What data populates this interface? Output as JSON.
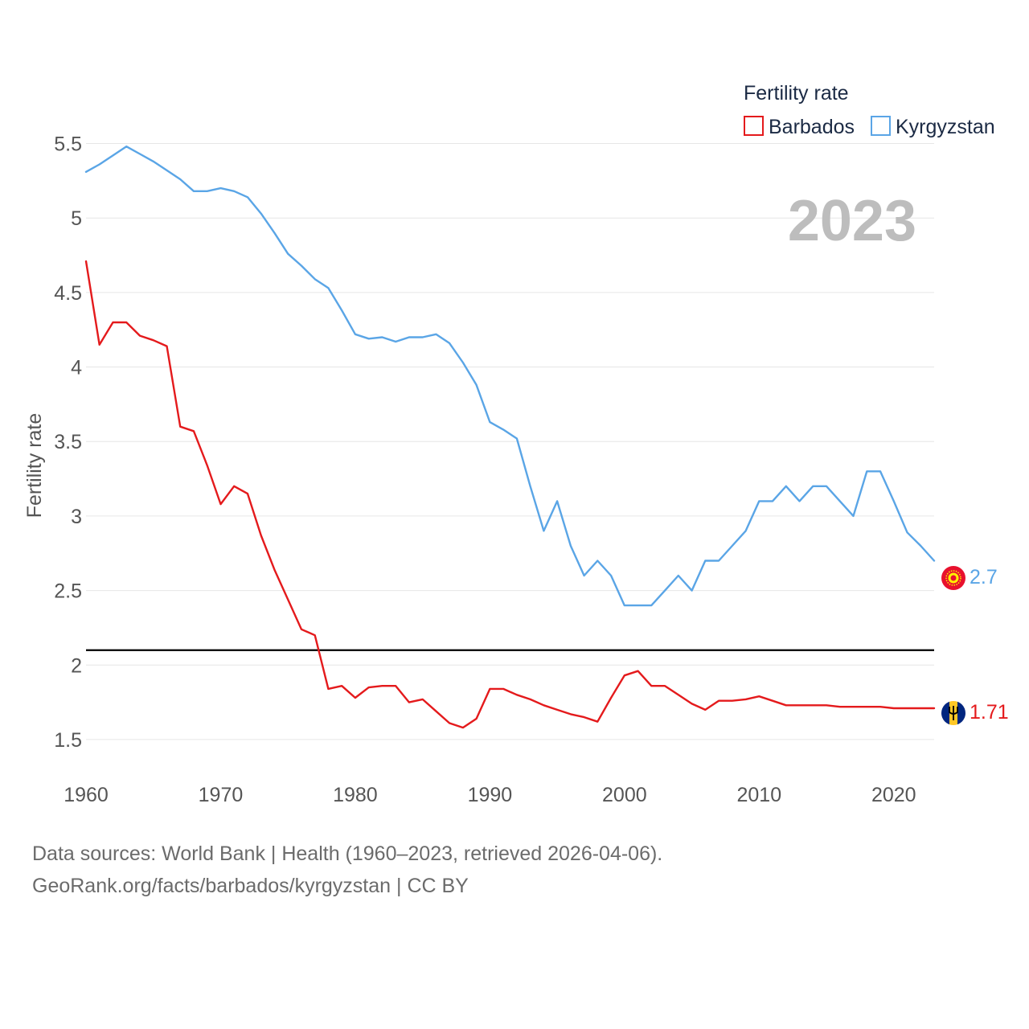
{
  "chart_data": {
    "type": "line",
    "title": "Fertility rate",
    "ylabel": "Fertility rate",
    "xlabel": "",
    "year_stamp": "2023",
    "xlim": [
      1960,
      2023
    ],
    "ylim": [
      1.3,
      5.6
    ],
    "x_ticks": [
      1960,
      1970,
      1980,
      1990,
      2000,
      2010,
      2020
    ],
    "y_ticks": [
      1.5,
      2,
      2.5,
      3,
      3.5,
      4,
      4.5,
      5,
      5.5
    ],
    "y_tick_labels": [
      "1.5",
      "2",
      "2.5",
      "3",
      "3.5",
      "4",
      "4.5",
      "5",
      "5.5"
    ],
    "reference_line": 2.1,
    "grid": true,
    "legend_position": "top-right",
    "x": [
      1960,
      1961,
      1962,
      1963,
      1964,
      1965,
      1966,
      1967,
      1968,
      1969,
      1970,
      1971,
      1972,
      1973,
      1974,
      1975,
      1976,
      1977,
      1978,
      1979,
      1980,
      1981,
      1982,
      1983,
      1984,
      1985,
      1986,
      1987,
      1988,
      1989,
      1990,
      1991,
      1992,
      1993,
      1994,
      1995,
      1996,
      1997,
      1998,
      1999,
      2000,
      2001,
      2002,
      2003,
      2004,
      2005,
      2006,
      2007,
      2008,
      2009,
      2010,
      2011,
      2012,
      2013,
      2014,
      2015,
      2016,
      2017,
      2018,
      2019,
      2020,
      2021,
      2022,
      2023
    ],
    "series": [
      {
        "name": "Barbados",
        "color": "#e41a1c",
        "end_label": "1.71",
        "flag": "barbados-flag",
        "values": [
          4.71,
          4.15,
          4.3,
          4.3,
          4.21,
          4.18,
          4.14,
          3.6,
          3.57,
          3.34,
          3.08,
          3.2,
          3.15,
          2.87,
          2.64,
          2.44,
          2.24,
          2.2,
          1.84,
          1.86,
          1.78,
          1.85,
          1.86,
          1.86,
          1.75,
          1.77,
          1.69,
          1.61,
          1.58,
          1.64,
          1.84,
          1.84,
          1.8,
          1.77,
          1.73,
          1.7,
          1.67,
          1.65,
          1.62,
          1.78,
          1.93,
          1.96,
          1.86,
          1.86,
          1.8,
          1.74,
          1.7,
          1.76,
          1.76,
          1.77,
          1.79,
          1.76,
          1.73,
          1.73,
          1.73,
          1.73,
          1.72,
          1.72,
          1.72,
          1.72,
          1.71,
          1.71,
          1.71,
          1.71
        ]
      },
      {
        "name": "Kyrgyzstan",
        "color": "#5aa5e6",
        "end_label": "2.7",
        "flag": "kyrgyzstan-flag",
        "values": [
          5.31,
          5.36,
          5.42,
          5.48,
          5.43,
          5.38,
          5.32,
          5.26,
          5.18,
          5.18,
          5.2,
          5.18,
          5.14,
          5.03,
          4.9,
          4.76,
          4.68,
          4.59,
          4.53,
          4.38,
          4.22,
          4.19,
          4.2,
          4.17,
          4.2,
          4.2,
          4.22,
          4.16,
          4.03,
          3.88,
          3.63,
          3.58,
          3.52,
          3.2,
          2.9,
          3.1,
          2.8,
          2.6,
          2.7,
          2.6,
          2.4,
          2.4,
          2.4,
          2.5,
          2.6,
          2.5,
          2.7,
          2.7,
          2.8,
          2.9,
          3.1,
          3.1,
          3.2,
          3.1,
          3.2,
          3.2,
          3.1,
          3.0,
          3.3,
          3.3,
          3.1,
          2.89,
          2.8,
          2.7
        ]
      }
    ]
  },
  "footer": {
    "line1": "Data sources: World Bank | Health (1960–2023, retrieved 2026-04-06).",
    "line2": "GeoRank.org/facts/barbados/kyrgyzstan | CC BY"
  }
}
